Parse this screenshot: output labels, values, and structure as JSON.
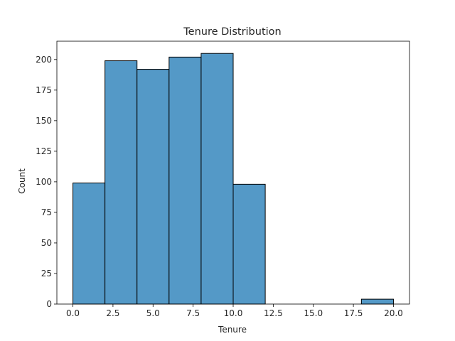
{
  "chart_data": {
    "type": "bar",
    "title": "Tenure Distribution",
    "xlabel": "Tenure",
    "ylabel": "Count",
    "bin_edges": [
      0,
      2,
      4,
      6,
      8,
      10,
      12,
      14,
      16,
      18,
      20
    ],
    "values": [
      99,
      199,
      192,
      202,
      205,
      98,
      0,
      0,
      0,
      4
    ],
    "xlim": [
      -1,
      21
    ],
    "ylim": [
      0,
      215
    ],
    "xticks": [
      0,
      2.5,
      5,
      7.5,
      10,
      12.5,
      15,
      17.5,
      20
    ],
    "xtick_labels": [
      "0.0",
      "2.5",
      "5.0",
      "7.5",
      "10.0",
      "12.5",
      "15.0",
      "17.5",
      "20.0"
    ],
    "yticks": [
      0,
      25,
      50,
      75,
      100,
      125,
      150,
      175,
      200
    ],
    "ytick_labels": [
      "0",
      "25",
      "50",
      "75",
      "100",
      "125",
      "150",
      "175",
      "200"
    ],
    "bar_color": "#5499c7",
    "edge_color": "#000000",
    "grid": false
  }
}
